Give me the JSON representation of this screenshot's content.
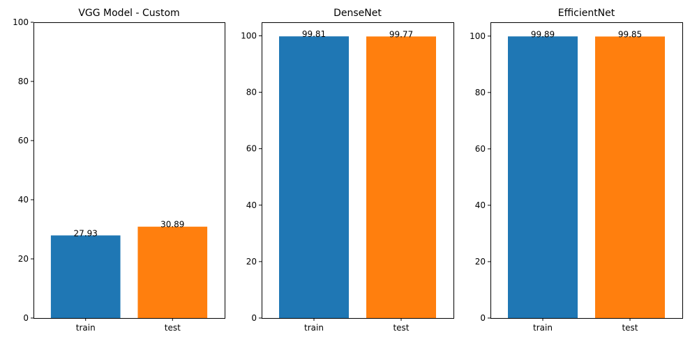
{
  "chart_data": [
    {
      "type": "bar",
      "title": "VGG Model - Custom",
      "categories": [
        "train",
        "test"
      ],
      "values": [
        27.93,
        30.89
      ],
      "value_labels": [
        "27.93",
        "30.89"
      ],
      "colors": [
        "#1f77b4",
        "#ff7f0e"
      ],
      "ylim": [
        0,
        100
      ],
      "yticks": [
        0,
        20,
        40,
        60,
        80,
        100
      ],
      "grid": false
    },
    {
      "type": "bar",
      "title": "DenseNet",
      "categories": [
        "train",
        "test"
      ],
      "values": [
        99.81,
        99.77
      ],
      "value_labels": [
        "99.81",
        "99.77"
      ],
      "colors": [
        "#1f77b4",
        "#ff7f0e"
      ],
      "ylim": [
        0,
        104.8
      ],
      "yticks": [
        0,
        20,
        40,
        60,
        80,
        100
      ],
      "grid": false
    },
    {
      "type": "bar",
      "title": "EfficientNet",
      "categories": [
        "train",
        "test"
      ],
      "values": [
        99.89,
        99.85
      ],
      "value_labels": [
        "99.89",
        "99.85"
      ],
      "colors": [
        "#1f77b4",
        "#ff7f0e"
      ],
      "ylim": [
        0,
        104.9
      ],
      "yticks": [
        0,
        20,
        40,
        60,
        80,
        100
      ],
      "grid": false
    }
  ]
}
